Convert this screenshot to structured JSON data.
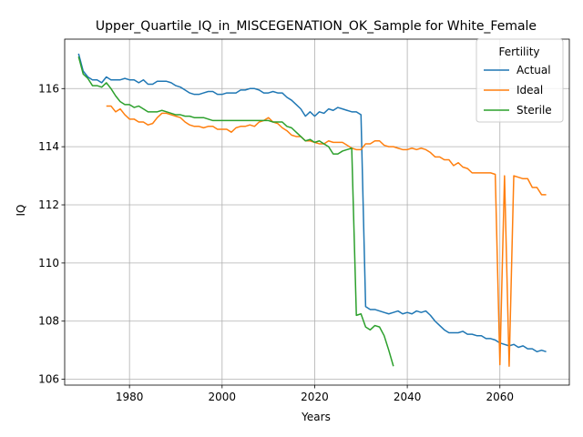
{
  "chart_data": {
    "type": "line",
    "title": "Upper_Quartile_IQ_in_MISCEGENATION_OK_Sample for White_Female",
    "xlabel": "Years",
    "ylabel": "IQ",
    "xlim": [
      1966,
      2075
    ],
    "ylim": [
      105.8,
      117.7
    ],
    "xticks": [
      1980,
      2000,
      2020,
      2040,
      2060
    ],
    "yticks": [
      106,
      108,
      110,
      112,
      114,
      116
    ],
    "grid": true,
    "legend": {
      "title": "Fertility",
      "position": "top-right"
    },
    "series": [
      {
        "name": "Actual",
        "color": "#1f77b4",
        "x": [
          1969,
          1970,
          1971,
          1972,
          1973,
          1974,
          1975,
          1976,
          1977,
          1978,
          1979,
          1980,
          1981,
          1982,
          1983,
          1984,
          1985,
          1986,
          1987,
          1988,
          1989,
          1990,
          1991,
          1992,
          1993,
          1994,
          1995,
          1996,
          1997,
          1998,
          1999,
          2000,
          2001,
          2002,
          2003,
          2004,
          2005,
          2006,
          2007,
          2008,
          2009,
          2010,
          2011,
          2012,
          2013,
          2014,
          2015,
          2016,
          2017,
          2018,
          2019,
          2020,
          2021,
          2022,
          2023,
          2024,
          2025,
          2026,
          2027,
          2028,
          2029,
          2030,
          2031,
          2032,
          2033,
          2034,
          2035,
          2036,
          2037,
          2038,
          2039,
          2040,
          2041,
          2042,
          2043,
          2044,
          2045,
          2046,
          2047,
          2048,
          2049,
          2050,
          2051,
          2052,
          2053,
          2054,
          2055,
          2056,
          2057,
          2058,
          2059,
          2060,
          2061,
          2062,
          2063,
          2064,
          2065,
          2066,
          2067,
          2068,
          2069,
          2070
        ],
        "values": [
          117.2,
          116.6,
          116.4,
          116.3,
          116.3,
          116.2,
          116.4,
          116.3,
          116.3,
          116.3,
          116.35,
          116.3,
          116.3,
          116.2,
          116.3,
          116.15,
          116.15,
          116.25,
          116.25,
          116.25,
          116.2,
          116.1,
          116.05,
          115.95,
          115.85,
          115.8,
          115.8,
          115.85,
          115.9,
          115.9,
          115.8,
          115.8,
          115.85,
          115.85,
          115.85,
          115.95,
          115.95,
          116.0,
          116.0,
          115.95,
          115.85,
          115.85,
          115.9,
          115.85,
          115.85,
          115.7,
          115.6,
          115.45,
          115.3,
          115.05,
          115.2,
          115.05,
          115.2,
          115.15,
          115.3,
          115.25,
          115.35,
          115.3,
          115.25,
          115.2,
          115.2,
          115.1,
          108.5,
          108.4,
          108.4,
          108.35,
          108.3,
          108.25,
          108.3,
          108.35,
          108.25,
          108.3,
          108.25,
          108.35,
          108.3,
          108.35,
          108.2,
          108.0,
          107.85,
          107.7,
          107.6,
          107.6,
          107.6,
          107.65,
          107.55,
          107.55,
          107.5,
          107.5,
          107.4,
          107.4,
          107.35,
          107.25,
          107.2,
          107.15,
          107.2,
          107.1,
          107.15,
          107.05,
          107.05,
          106.95,
          107.0,
          106.95
        ]
      },
      {
        "name": "Ideal",
        "color": "#ff7f0e",
        "x": [
          1975,
          1976,
          1977,
          1978,
          1979,
          1980,
          1981,
          1982,
          1983,
          1984,
          1985,
          1986,
          1987,
          1988,
          1989,
          1990,
          1991,
          1992,
          1993,
          1994,
          1995,
          1996,
          1997,
          1998,
          1999,
          2000,
          2001,
          2002,
          2003,
          2004,
          2005,
          2006,
          2007,
          2008,
          2009,
          2010,
          2011,
          2012,
          2013,
          2014,
          2015,
          2016,
          2017,
          2018,
          2019,
          2020,
          2021,
          2022,
          2023,
          2024,
          2025,
          2026,
          2027,
          2028,
          2029,
          2030,
          2031,
          2032,
          2033,
          2034,
          2035,
          2036,
          2037,
          2038,
          2039,
          2040,
          2041,
          2042,
          2043,
          2044,
          2045,
          2046,
          2047,
          2048,
          2049,
          2050,
          2051,
          2052,
          2053,
          2054,
          2055,
          2056,
          2057,
          2058,
          2059,
          2060,
          2061,
          2062,
          2063,
          2064,
          2065,
          2066,
          2067,
          2068,
          2069,
          2070
        ],
        "values": [
          115.4,
          115.4,
          115.2,
          115.3,
          115.1,
          114.95,
          114.95,
          114.85,
          114.85,
          114.75,
          114.8,
          115.0,
          115.15,
          115.15,
          115.1,
          115.05,
          115.0,
          114.85,
          114.75,
          114.7,
          114.7,
          114.65,
          114.7,
          114.7,
          114.6,
          114.6,
          114.6,
          114.5,
          114.65,
          114.7,
          114.7,
          114.75,
          114.7,
          114.85,
          114.9,
          115.0,
          114.85,
          114.8,
          114.65,
          114.55,
          114.4,
          114.35,
          114.35,
          114.2,
          114.2,
          114.15,
          114.1,
          114.1,
          114.2,
          114.15,
          114.15,
          114.15,
          114.05,
          113.95,
          113.9,
          113.9,
          114.1,
          114.1,
          114.2,
          114.2,
          114.05,
          114.0,
          114.0,
          113.95,
          113.9,
          113.9,
          113.95,
          113.9,
          113.95,
          113.9,
          113.8,
          113.65,
          113.65,
          113.55,
          113.55,
          113.35,
          113.45,
          113.3,
          113.25,
          113.1,
          113.1,
          113.1,
          113.1,
          113.1,
          113.05,
          106.5,
          113.0,
          106.45,
          113.0,
          112.95,
          112.9,
          112.9,
          112.6,
          112.6,
          112.35,
          112.35
        ]
      },
      {
        "name": "Sterile",
        "color": "#2ca02c",
        "x": [
          1969,
          1970,
          1971,
          1972,
          1973,
          1974,
          1975,
          1976,
          1977,
          1978,
          1979,
          1980,
          1981,
          1982,
          1983,
          1984,
          1985,
          1986,
          1987,
          1988,
          1989,
          1990,
          1991,
          1992,
          1993,
          1994,
          1995,
          1996,
          1997,
          1998,
          1999,
          2000,
          2001,
          2002,
          2003,
          2004,
          2005,
          2006,
          2007,
          2008,
          2009,
          2010,
          2011,
          2012,
          2013,
          2014,
          2015,
          2016,
          2017,
          2018,
          2019,
          2020,
          2021,
          2022,
          2023,
          2024,
          2025,
          2026,
          2027,
          2028,
          2029,
          2030,
          2031,
          2032,
          2033,
          2034,
          2035,
          2036,
          2037
        ],
        "values": [
          117.1,
          116.5,
          116.35,
          116.1,
          116.1,
          116.05,
          116.2,
          116.0,
          115.75,
          115.55,
          115.45,
          115.45,
          115.35,
          115.4,
          115.3,
          115.2,
          115.2,
          115.2,
          115.25,
          115.2,
          115.15,
          115.1,
          115.1,
          115.05,
          115.05,
          115.0,
          115.0,
          115.0,
          114.95,
          114.9,
          114.9,
          114.9,
          114.9,
          114.9,
          114.9,
          114.9,
          114.9,
          114.9,
          114.9,
          114.9,
          114.9,
          114.9,
          114.85,
          114.85,
          114.85,
          114.7,
          114.65,
          114.5,
          114.35,
          114.2,
          114.25,
          114.15,
          114.2,
          114.1,
          114.0,
          113.75,
          113.75,
          113.85,
          113.9,
          113.95,
          108.2,
          108.25,
          107.8,
          107.7,
          107.85,
          107.8,
          107.5,
          107.0,
          106.45
        ]
      }
    ]
  }
}
